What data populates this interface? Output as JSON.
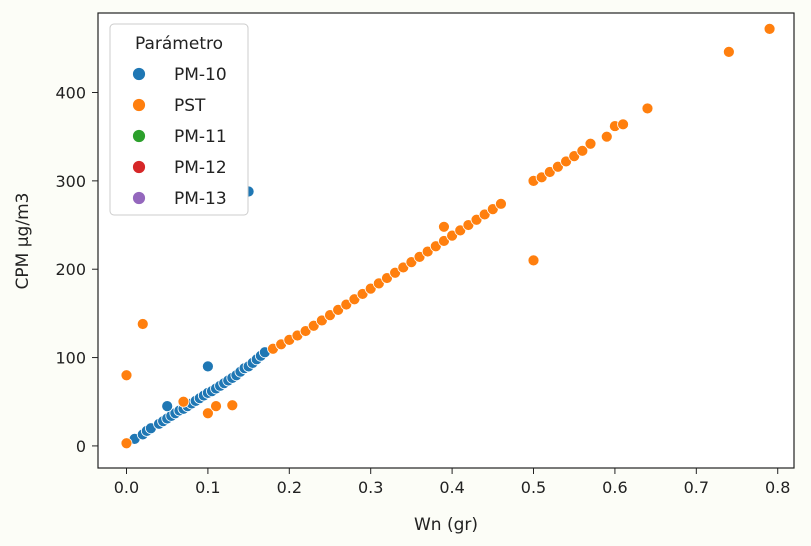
{
  "chart_data": {
    "type": "scatter",
    "xlabel": "Wn (gr)",
    "ylabel": "CPM µg/m3",
    "xlim": [
      -0.035,
      0.82
    ],
    "ylim": [
      -25,
      490
    ],
    "xticks": [
      "0.0",
      "0.1",
      "0.2",
      "0.3",
      "0.4",
      "0.5",
      "0.6",
      "0.7",
      "0.8"
    ],
    "yticks": [
      "0",
      "100",
      "200",
      "300",
      "400"
    ],
    "legend": {
      "title": "Parámetro",
      "placement": "upper-left"
    },
    "series": [
      {
        "name": "PM-10",
        "color": "#1f77b4",
        "points": [
          [
            0.0,
            3
          ],
          [
            0.01,
            8
          ],
          [
            0.02,
            13
          ],
          [
            0.025,
            17
          ],
          [
            0.03,
            20
          ],
          [
            0.04,
            25
          ],
          [
            0.045,
            28
          ],
          [
            0.05,
            31
          ],
          [
            0.055,
            34
          ],
          [
            0.06,
            37
          ],
          [
            0.065,
            40
          ],
          [
            0.07,
            42
          ],
          [
            0.075,
            45
          ],
          [
            0.08,
            48
          ],
          [
            0.085,
            51
          ],
          [
            0.09,
            54
          ],
          [
            0.095,
            57
          ],
          [
            0.1,
            60
          ],
          [
            0.105,
            62
          ],
          [
            0.11,
            65
          ],
          [
            0.115,
            68
          ],
          [
            0.12,
            71
          ],
          [
            0.125,
            74
          ],
          [
            0.13,
            77
          ],
          [
            0.135,
            80
          ],
          [
            0.14,
            84
          ],
          [
            0.145,
            88
          ],
          [
            0.15,
            90
          ],
          [
            0.155,
            94
          ],
          [
            0.16,
            98
          ],
          [
            0.165,
            102
          ],
          [
            0.17,
            106
          ],
          [
            0.05,
            45
          ],
          [
            0.1,
            90
          ],
          [
            0.15,
            288
          ]
        ]
      },
      {
        "name": "PST",
        "color": "#ff7f0e",
        "points": [
          [
            0.0,
            80
          ],
          [
            0.0,
            3
          ],
          [
            0.02,
            138
          ],
          [
            0.1,
            37
          ],
          [
            0.11,
            45
          ],
          [
            0.13,
            46
          ],
          [
            0.07,
            50
          ],
          [
            0.18,
            110
          ],
          [
            0.19,
            115
          ],
          [
            0.2,
            120
          ],
          [
            0.21,
            125
          ],
          [
            0.22,
            130
          ],
          [
            0.23,
            136
          ],
          [
            0.24,
            142
          ],
          [
            0.25,
            148
          ],
          [
            0.26,
            154
          ],
          [
            0.27,
            160
          ],
          [
            0.28,
            166
          ],
          [
            0.29,
            172
          ],
          [
            0.3,
            178
          ],
          [
            0.31,
            184
          ],
          [
            0.32,
            190
          ],
          [
            0.33,
            196
          ],
          [
            0.34,
            202
          ],
          [
            0.35,
            208
          ],
          [
            0.36,
            214
          ],
          [
            0.37,
            220
          ],
          [
            0.38,
            226
          ],
          [
            0.39,
            232
          ],
          [
            0.4,
            238
          ],
          [
            0.41,
            244
          ],
          [
            0.42,
            250
          ],
          [
            0.43,
            256
          ],
          [
            0.44,
            262
          ],
          [
            0.45,
            268
          ],
          [
            0.46,
            274
          ],
          [
            0.39,
            248
          ],
          [
            0.5,
            210
          ],
          [
            0.5,
            300
          ],
          [
            0.51,
            304
          ],
          [
            0.52,
            310
          ],
          [
            0.53,
            316
          ],
          [
            0.54,
            322
          ],
          [
            0.55,
            328
          ],
          [
            0.56,
            334
          ],
          [
            0.57,
            342
          ],
          [
            0.59,
            350
          ],
          [
            0.6,
            362
          ],
          [
            0.61,
            364
          ],
          [
            0.64,
            382
          ],
          [
            0.74,
            446
          ],
          [
            0.79,
            472
          ]
        ]
      },
      {
        "name": "PM-11",
        "color": "#2ca02c",
        "points": []
      },
      {
        "name": "PM-12",
        "color": "#d62728",
        "points": []
      },
      {
        "name": "PM-13",
        "color": "#9467bd",
        "points": []
      }
    ]
  }
}
